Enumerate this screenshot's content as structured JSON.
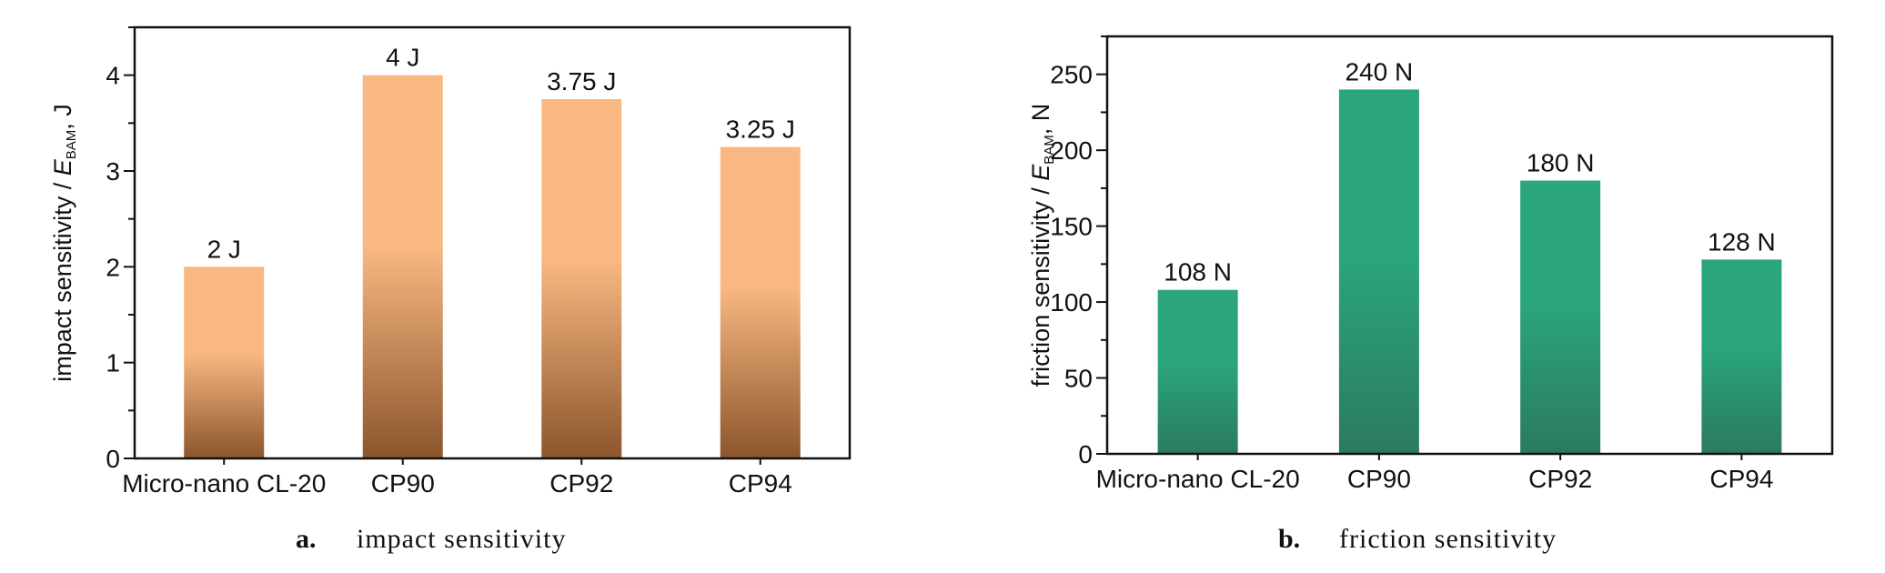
{
  "chart_data": [
    {
      "type": "bar",
      "panel_letter": "a.",
      "panel_caption": "impact sensitivity",
      "ylabel": {
        "prefix": "impact sensitivity / ",
        "symbol": "E",
        "subscript": "BAM",
        "suffix": ", J"
      },
      "categories": [
        "Micro-nano CL-20",
        "CP90",
        "CP92",
        "CP94"
      ],
      "values": [
        2,
        4,
        3.75,
        3.25
      ],
      "data_labels": [
        "2 J",
        "4 J",
        "3.75 J",
        "3.25 J"
      ],
      "ylim": [
        0,
        4.5
      ],
      "yticks": [
        0,
        1,
        2,
        3,
        4
      ],
      "ytick_labels": [
        "0",
        "1",
        "2",
        "3",
        "4"
      ],
      "grid": false,
      "colors": {
        "bar_top": "#f9b882",
        "bar_bottom": "#8c552c"
      }
    },
    {
      "type": "bar",
      "panel_letter": "b.",
      "panel_caption": "friction sensitivity",
      "ylabel": {
        "prefix": "friction sensitivity / ",
        "symbol": "E",
        "subscript": "BAM",
        "suffix": ", N"
      },
      "categories": [
        "Micro-nano CL-20",
        "CP90",
        "CP92",
        "CP94"
      ],
      "values": [
        108,
        240,
        180,
        128
      ],
      "data_labels": [
        "108 N",
        "240 N",
        "180 N",
        "128 N"
      ],
      "ylim": [
        0,
        275
      ],
      "yticks": [
        0,
        50,
        100,
        150,
        200,
        250
      ],
      "ytick_labels": [
        "0",
        "50",
        "100",
        "150",
        "200",
        "250"
      ],
      "grid": false,
      "colors": {
        "bar_top": "#2aa57d",
        "bar_bottom": "#2b7a5e"
      }
    }
  ]
}
